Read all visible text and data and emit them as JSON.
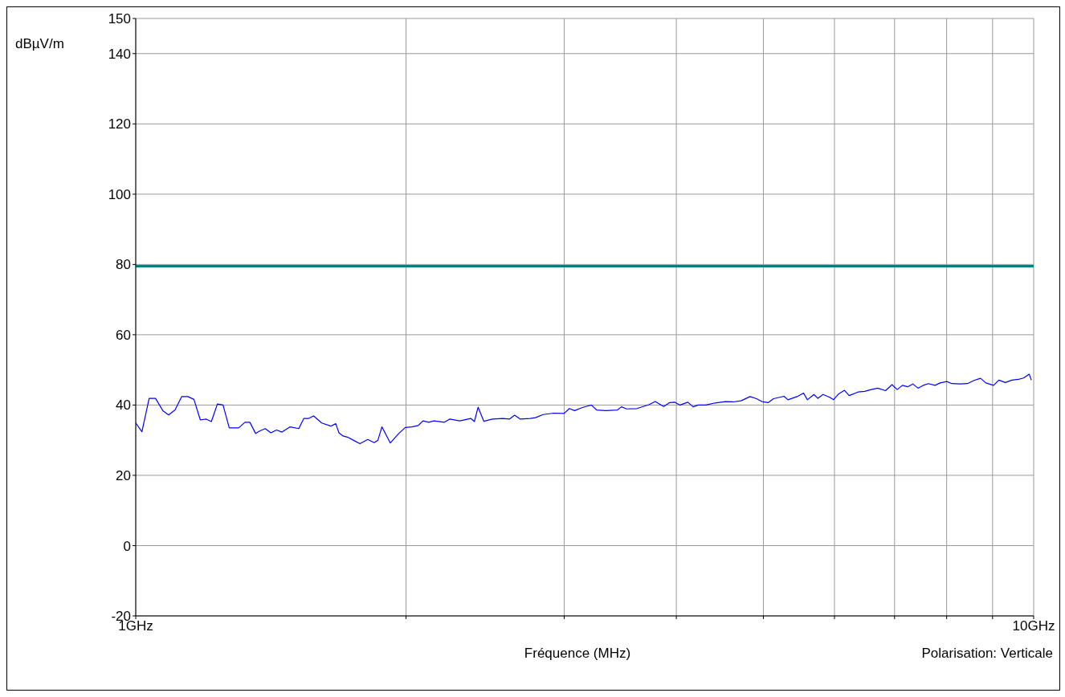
{
  "chart_data": {
    "type": "line",
    "xlabel": "Fréquence (MHz)",
    "ylabel": "dBµV/m",
    "annotations": [
      "Polarisation: Verticale"
    ],
    "log": "x",
    "grid": true,
    "xlim": [
      1,
      10
    ],
    "xticks": [
      {
        "value": 1,
        "label": "1GHz"
      },
      {
        "value": 2,
        "label": null
      },
      {
        "value": 3,
        "label": null
      },
      {
        "value": 4,
        "label": null
      },
      {
        "value": 5,
        "label": null
      },
      {
        "value": 6,
        "label": null
      },
      {
        "value": 7,
        "label": null
      },
      {
        "value": 8,
        "label": null
      },
      {
        "value": 9,
        "label": null
      },
      {
        "value": 10,
        "label": "10GHz"
      }
    ],
    "ylim": [
      -20,
      150
    ],
    "yticks": [
      -20,
      0,
      20,
      40,
      60,
      80,
      100,
      120,
      140,
      150
    ],
    "ref_lines": [
      {
        "axis": "y",
        "value": 79.5,
        "color": "#008080"
      }
    ],
    "x": [
      1.0,
      1.016,
      1.035,
      1.052,
      1.072,
      1.088,
      1.106,
      1.125,
      1.143,
      1.161,
      1.18,
      1.198,
      1.214,
      1.233,
      1.251,
      1.271,
      1.302,
      1.323,
      1.34,
      1.36,
      1.374,
      1.394,
      1.414,
      1.435,
      1.455,
      1.486,
      1.519,
      1.539,
      1.558,
      1.578,
      1.611,
      1.649,
      1.67,
      1.684,
      1.701,
      1.724,
      1.75,
      1.777,
      1.813,
      1.843,
      1.861,
      1.88,
      1.921,
      1.944,
      1.963,
      1.996,
      2.03,
      2.064,
      2.089,
      2.12,
      2.148,
      2.207,
      2.236,
      2.296,
      2.361,
      2.383,
      2.406,
      2.441,
      2.496,
      2.564,
      2.607,
      2.642,
      2.681,
      2.75,
      2.787,
      2.843,
      2.92,
      3.0,
      3.04,
      3.081,
      3.143,
      3.185,
      3.217,
      3.26,
      3.338,
      3.439,
      3.474,
      3.521,
      3.616,
      3.727,
      3.789,
      3.872,
      3.933,
      3.985,
      4.038,
      4.12,
      4.175,
      4.231,
      4.315,
      4.417,
      4.536,
      4.628,
      4.721,
      4.832,
      4.913,
      4.98,
      5.064,
      5.132,
      5.272,
      5.325,
      5.451,
      5.543,
      5.598,
      5.692,
      5.75,
      5.827,
      5.926,
      5.985,
      6.066,
      6.156,
      6.23,
      6.375,
      6.484,
      6.593,
      6.703,
      6.839,
      6.954,
      7.047,
      7.142,
      7.238,
      7.335,
      7.433,
      7.533,
      7.635,
      7.765,
      7.867,
      8.001,
      8.109,
      8.272,
      8.439,
      8.582,
      8.727,
      8.845,
      9.024,
      9.144,
      9.298,
      9.456,
      9.614,
      9.743,
      9.886,
      9.94
    ],
    "series": [
      {
        "color": "#0000ff",
        "values": [
          34.9,
          32.4,
          41.9,
          41.9,
          38.4,
          37.2,
          38.6,
          42.4,
          42.4,
          41.6,
          35.8,
          36.0,
          35.3,
          40.3,
          40.0,
          33.5,
          33.5,
          35.1,
          35.1,
          31.9,
          32.6,
          33.3,
          32.1,
          32.9,
          32.3,
          33.8,
          33.3,
          36.2,
          36.2,
          36.9,
          34.9,
          34.0,
          34.7,
          32.1,
          31.2,
          30.8,
          29.9,
          29.0,
          30.2,
          29.3,
          30.0,
          33.8,
          29.2,
          30.7,
          31.9,
          33.6,
          33.8,
          34.2,
          35.5,
          35.1,
          35.5,
          35.1,
          36.0,
          35.5,
          36.2,
          35.3,
          39.4,
          35.4,
          36.0,
          36.2,
          36.0,
          37.1,
          36.0,
          36.2,
          36.4,
          37.3,
          37.7,
          37.6,
          39.0,
          38.4,
          39.3,
          39.7,
          40.0,
          38.6,
          38.4,
          38.6,
          39.5,
          38.9,
          39.0,
          40.1,
          41.0,
          39.6,
          40.7,
          40.8,
          40.0,
          40.8,
          39.5,
          40.0,
          40.0,
          40.6,
          41.0,
          40.9,
          41.2,
          42.4,
          41.8,
          41.0,
          40.7,
          41.8,
          42.5,
          41.5,
          42.4,
          43.4,
          41.5,
          43.0,
          41.9,
          43.0,
          42.2,
          41.5,
          43.2,
          44.2,
          42.7,
          43.7,
          43.9,
          44.4,
          44.8,
          44.1,
          45.8,
          44.4,
          45.6,
          45.2,
          46.0,
          44.8,
          45.6,
          46.1,
          45.6,
          46.3,
          46.7,
          46.1,
          46.0,
          46.1,
          47.0,
          47.6,
          46.3,
          45.6,
          47.1,
          46.4,
          47.1,
          47.3,
          47.7,
          48.8,
          47.1
        ]
      }
    ]
  }
}
